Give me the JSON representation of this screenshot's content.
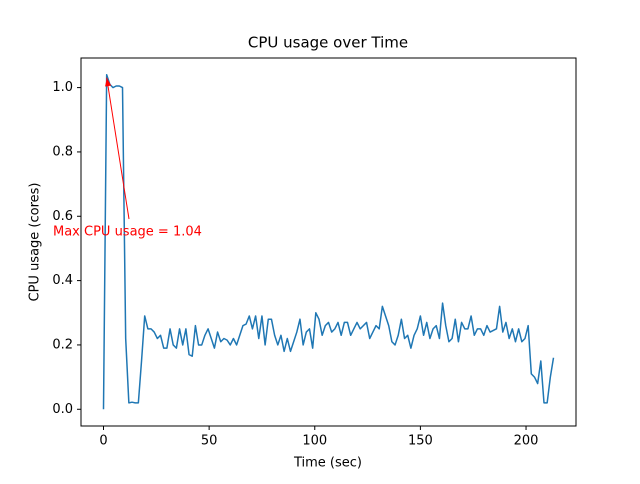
{
  "chart_data": {
    "type": "line",
    "title": "CPU usage over Time",
    "x_label": "Time (sec)",
    "y_label": "CPU usage (cores)",
    "annotation": {
      "text": "Max CPU usage = 1.04",
      "color": "#ff0000"
    },
    "xlim": [
      -10.65,
      223.65
    ],
    "ylim": [
      -0.052,
      1.092
    ],
    "xticks": [
      0,
      50,
      100,
      150,
      200
    ],
    "yticks": [
      {
        "value": 0,
        "label": "0.0"
      },
      0.2,
      0.4,
      0.6,
      0.8,
      {
        "value": 1,
        "label": "1.0"
      }
    ],
    "x": [
      0,
      1.5,
      3,
      4.5,
      6,
      7.5,
      9,
      10.5,
      12,
      13.5,
      15,
      16.5,
      18,
      19.5,
      21,
      22.5,
      24,
      25.5,
      27,
      28.5,
      30,
      31.5,
      33,
      34.5,
      36,
      37.5,
      39,
      40.5,
      42,
      43.5,
      45,
      46.5,
      48,
      49.5,
      51,
      52.5,
      54,
      55.5,
      57,
      58.5,
      60,
      61.5,
      63,
      64.5,
      66,
      67.5,
      69,
      70.5,
      72,
      73.5,
      75,
      76.5,
      78,
      79.5,
      81,
      82.5,
      84,
      85.5,
      87,
      88.5,
      90,
      91.5,
      93,
      94.5,
      96,
      97.5,
      99,
      100.5,
      102,
      103.5,
      105,
      106.5,
      108,
      109.5,
      111,
      112.5,
      114,
      115.5,
      117,
      118.5,
      120,
      121.5,
      123,
      124.5,
      126,
      127.5,
      129,
      130.5,
      132,
      133.5,
      135,
      136.5,
      138,
      139.5,
      141,
      142.5,
      144,
      145.5,
      147,
      148.5,
      150,
      151.5,
      153,
      154.5,
      156,
      157.5,
      159,
      160.5,
      162,
      163.5,
      165,
      166.5,
      168,
      169.5,
      171,
      172.5,
      174,
      175.5,
      177,
      178.5,
      180,
      181.5,
      183,
      184.5,
      186,
      187.5,
      189,
      190.5,
      192,
      193.5,
      195,
      196.5,
      198,
      199.5,
      201,
      202.5,
      204,
      205.5,
      207,
      208.5,
      210,
      211.5,
      213
    ],
    "series": [
      {
        "color": "#1f77b4",
        "values": [
          0,
          1.04,
          1.01,
          1.0,
          1.005,
          1.005,
          1.0,
          0.22,
          0.02,
          0.022,
          0.02,
          0.02,
          0.15,
          0.29,
          0.25,
          0.25,
          0.24,
          0.22,
          0.23,
          0.19,
          0.19,
          0.25,
          0.2,
          0.19,
          0.25,
          0.2,
          0.25,
          0.17,
          0.165,
          0.26,
          0.2,
          0.2,
          0.23,
          0.25,
          0.22,
          0.19,
          0.24,
          0.21,
          0.22,
          0.215,
          0.2,
          0.22,
          0.2,
          0.23,
          0.26,
          0.265,
          0.29,
          0.25,
          0.29,
          0.22,
          0.29,
          0.2,
          0.28,
          0.28,
          0.23,
          0.2,
          0.23,
          0.18,
          0.22,
          0.18,
          0.21,
          0.24,
          0.28,
          0.2,
          0.24,
          0.25,
          0.19,
          0.3,
          0.28,
          0.23,
          0.26,
          0.27,
          0.24,
          0.25,
          0.27,
          0.23,
          0.27,
          0.27,
          0.23,
          0.25,
          0.27,
          0.25,
          0.26,
          0.27,
          0.22,
          0.24,
          0.26,
          0.25,
          0.32,
          0.29,
          0.26,
          0.21,
          0.2,
          0.23,
          0.28,
          0.22,
          0.23,
          0.19,
          0.23,
          0.25,
          0.29,
          0.23,
          0.27,
          0.22,
          0.25,
          0.26,
          0.22,
          0.33,
          0.26,
          0.21,
          0.22,
          0.28,
          0.21,
          0.27,
          0.25,
          0.25,
          0.29,
          0.23,
          0.25,
          0.25,
          0.23,
          0.26,
          0.24,
          0.245,
          0.25,
          0.32,
          0.24,
          0.27,
          0.22,
          0.25,
          0.21,
          0.25,
          0.21,
          0.22,
          0.26,
          0.11,
          0.1,
          0.08,
          0.15,
          0.02,
          0.02,
          0.1,
          0.16
        ]
      }
    ]
  }
}
